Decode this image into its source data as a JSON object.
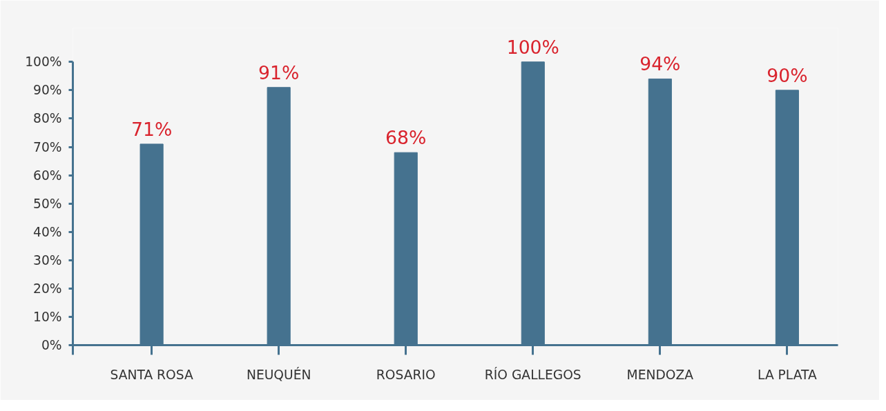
{
  "chart_data": {
    "type": "bar",
    "categories": [
      "SANTA ROSA",
      "NEUQUÉN",
      "ROSARIO",
      "RÍO GALLEGOS",
      "MENDOZA",
      "LA PLATA"
    ],
    "values": [
      71,
      91,
      68,
      100,
      94,
      90
    ],
    "value_labels": [
      "71%",
      "91%",
      "68%",
      "100%",
      "94%",
      "90%"
    ],
    "color": "#45728f",
    "ylim": [
      0,
      100
    ],
    "yticks": [
      {
        "value": 0,
        "label": "0%"
      },
      {
        "value": 10,
        "label": "10%"
      },
      {
        "value": 20,
        "label": "20%"
      },
      {
        "value": 30,
        "label": "30%"
      },
      {
        "value": 40,
        "label": "40%"
      },
      {
        "value": 50,
        "label": "50%"
      },
      {
        "value": 60,
        "label": "60%"
      },
      {
        "value": 70,
        "label": "70%"
      },
      {
        "value": 80,
        "label": "80%"
      },
      {
        "value": 90,
        "label": "90%"
      },
      {
        "value": 100,
        "label": "100%"
      }
    ],
    "grid": false
  }
}
